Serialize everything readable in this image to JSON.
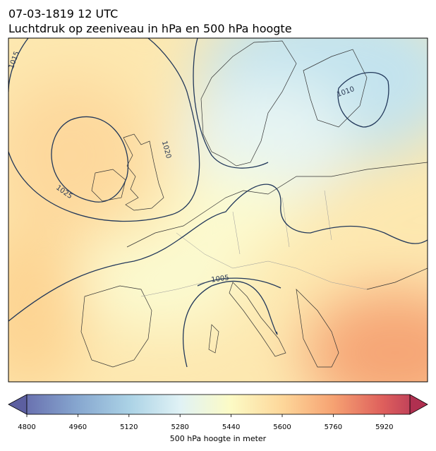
{
  "title": [
    "07-03-1819 12 UTC",
    "Luchtdruk op zeeniveau in hPa en 500 hPa hoogte"
  ],
  "contour_labels": [
    1015,
    1010,
    1020,
    1025,
    1005
  ],
  "colorbar": {
    "label": "500 hPa hoogte in meter",
    "lim": [
      4800,
      6000
    ],
    "ticks": [
      4800,
      4960,
      5120,
      5280,
      5440,
      5600,
      5760,
      5920
    ]
  }
}
